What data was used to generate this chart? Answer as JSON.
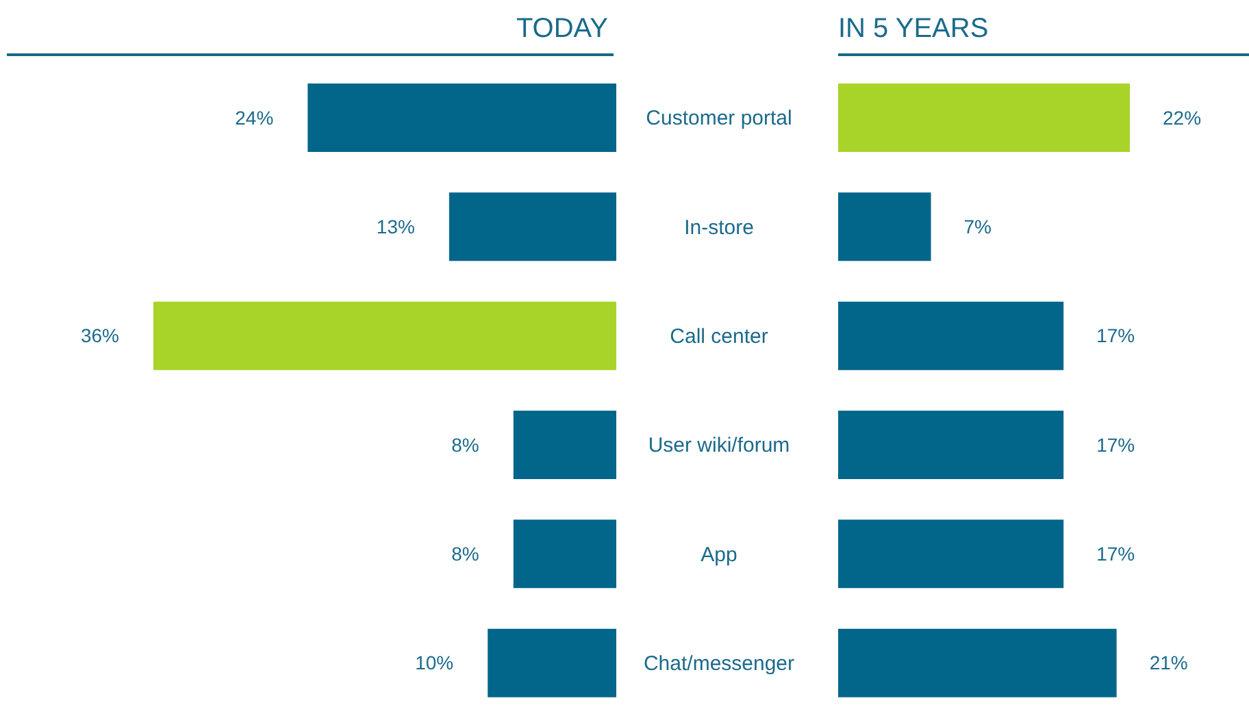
{
  "chart_data": [
    {
      "type": "bar",
      "orientation": "horizontal",
      "title": "TODAY",
      "categories": [
        "Customer portal",
        "In-store",
        "Call center",
        "User wiki/forum",
        "App",
        "Chat/messenger"
      ],
      "values": [
        24,
        13,
        36,
        8,
        8,
        10
      ],
      "colors": [
        "#02668a",
        "#02668a",
        "#a8d42a",
        "#02668a",
        "#02668a",
        "#02668a"
      ],
      "value_labels": [
        "24%",
        "13%",
        "36%",
        "8%",
        "8%",
        "10%"
      ],
      "tick_labels": false
    },
    {
      "type": "bar",
      "orientation": "horizontal",
      "title": "IN 5 YEARS",
      "categories": [
        "Customer portal",
        "In-store",
        "Call center",
        "User wiki/forum",
        "App",
        "Chat/messenger"
      ],
      "values": [
        22,
        7,
        17,
        17,
        17,
        21
      ],
      "colors": [
        "#a8d42a",
        "#02668a",
        "#02668a",
        "#02668a",
        "#02668a",
        "#02668a"
      ],
      "value_labels": [
        "22%",
        "7%",
        "17%",
        "17%",
        "17%",
        "21%"
      ],
      "tick_labels": "y"
    }
  ]
}
